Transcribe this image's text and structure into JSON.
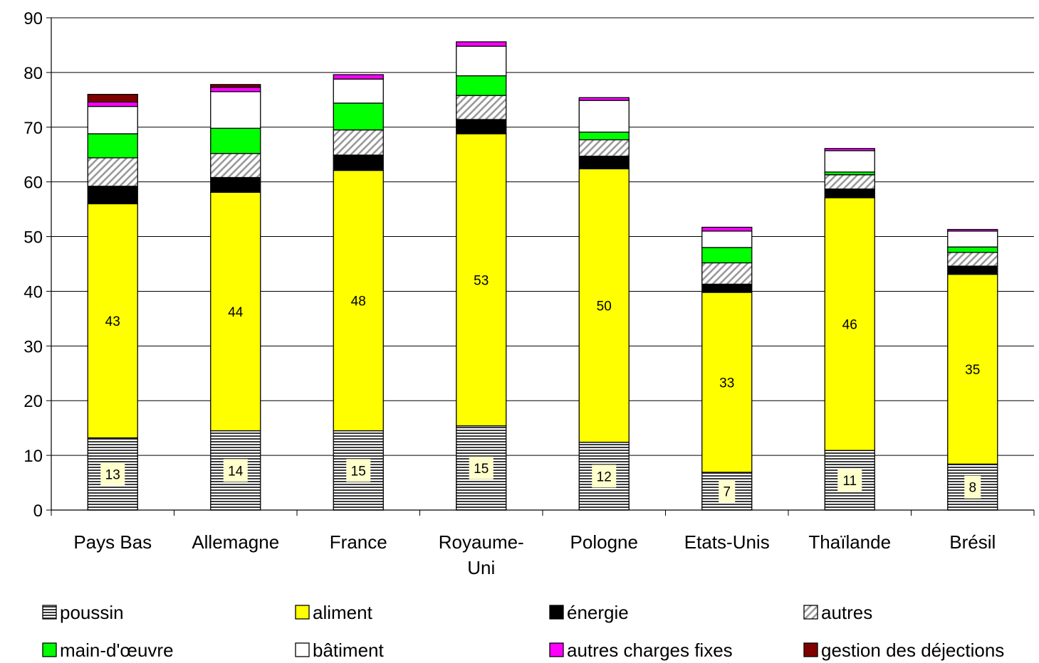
{
  "chart_data": {
    "type": "bar",
    "stacked": true,
    "categories": [
      [
        "Pays Bas"
      ],
      [
        "Allemagne"
      ],
      [
        "France"
      ],
      [
        "Royaume-",
        "Uni"
      ],
      [
        "Pologne"
      ],
      [
        "Etats-Unis"
      ],
      [
        "Thaïlande"
      ],
      [
        "Brésil"
      ]
    ],
    "ylim": [
      0,
      90
    ],
    "yticks": [
      "0",
      "10",
      "20",
      "30",
      "40",
      "50",
      "60",
      "70",
      "80",
      "90"
    ],
    "grid": true,
    "legend_position": "bottom",
    "series": [
      {
        "name": "poussin",
        "pattern": "hstripes",
        "color": "#000000",
        "values": [
          13.2,
          14.5,
          14.5,
          15.4,
          12.4,
          6.9,
          10.9,
          8.4
        ],
        "labels": [
          "13",
          "14",
          "15",
          "15",
          "12",
          "7",
          "11",
          "8"
        ]
      },
      {
        "name": "aliment",
        "pattern": "solid",
        "color": "#ffff00",
        "values": [
          42.8,
          43.6,
          47.6,
          53.4,
          50.0,
          32.9,
          46.2,
          34.7
        ],
        "labels": [
          "43",
          "44",
          "48",
          "53",
          "50",
          "33",
          "46",
          "35"
        ]
      },
      {
        "name": "énergie",
        "pattern": "solid",
        "color": "#000000",
        "values": [
          3.2,
          2.7,
          2.8,
          2.6,
          2.3,
          1.5,
          1.6,
          1.5
        ]
      },
      {
        "name": "autres",
        "pattern": "diag",
        "color": "#a0a0a0",
        "values": [
          5.2,
          4.4,
          4.6,
          4.4,
          3.0,
          3.9,
          2.6,
          2.5
        ]
      },
      {
        "name": "main-d'œuvre",
        "pattern": "solid",
        "color": "#00ff00",
        "values": [
          4.4,
          4.6,
          4.9,
          3.6,
          1.4,
          2.8,
          0.5,
          1.0
        ]
      },
      {
        "name": "bâtiment",
        "pattern": "solid",
        "color": "#ffffff",
        "values": [
          5.0,
          6.7,
          4.4,
          5.4,
          5.8,
          3.0,
          3.9,
          2.9
        ]
      },
      {
        "name": "autres charges fixes",
        "pattern": "solid",
        "color": "#ff00ff",
        "values": [
          0.8,
          0.8,
          0.8,
          0.8,
          0.5,
          0.7,
          0.4,
          0.3
        ]
      },
      {
        "name": "gestion des déjections",
        "pattern": "solid",
        "color": "#800000",
        "values": [
          1.4,
          0.5,
          0.0,
          0.0,
          0.0,
          0.0,
          0.0,
          0.0
        ]
      }
    ]
  }
}
